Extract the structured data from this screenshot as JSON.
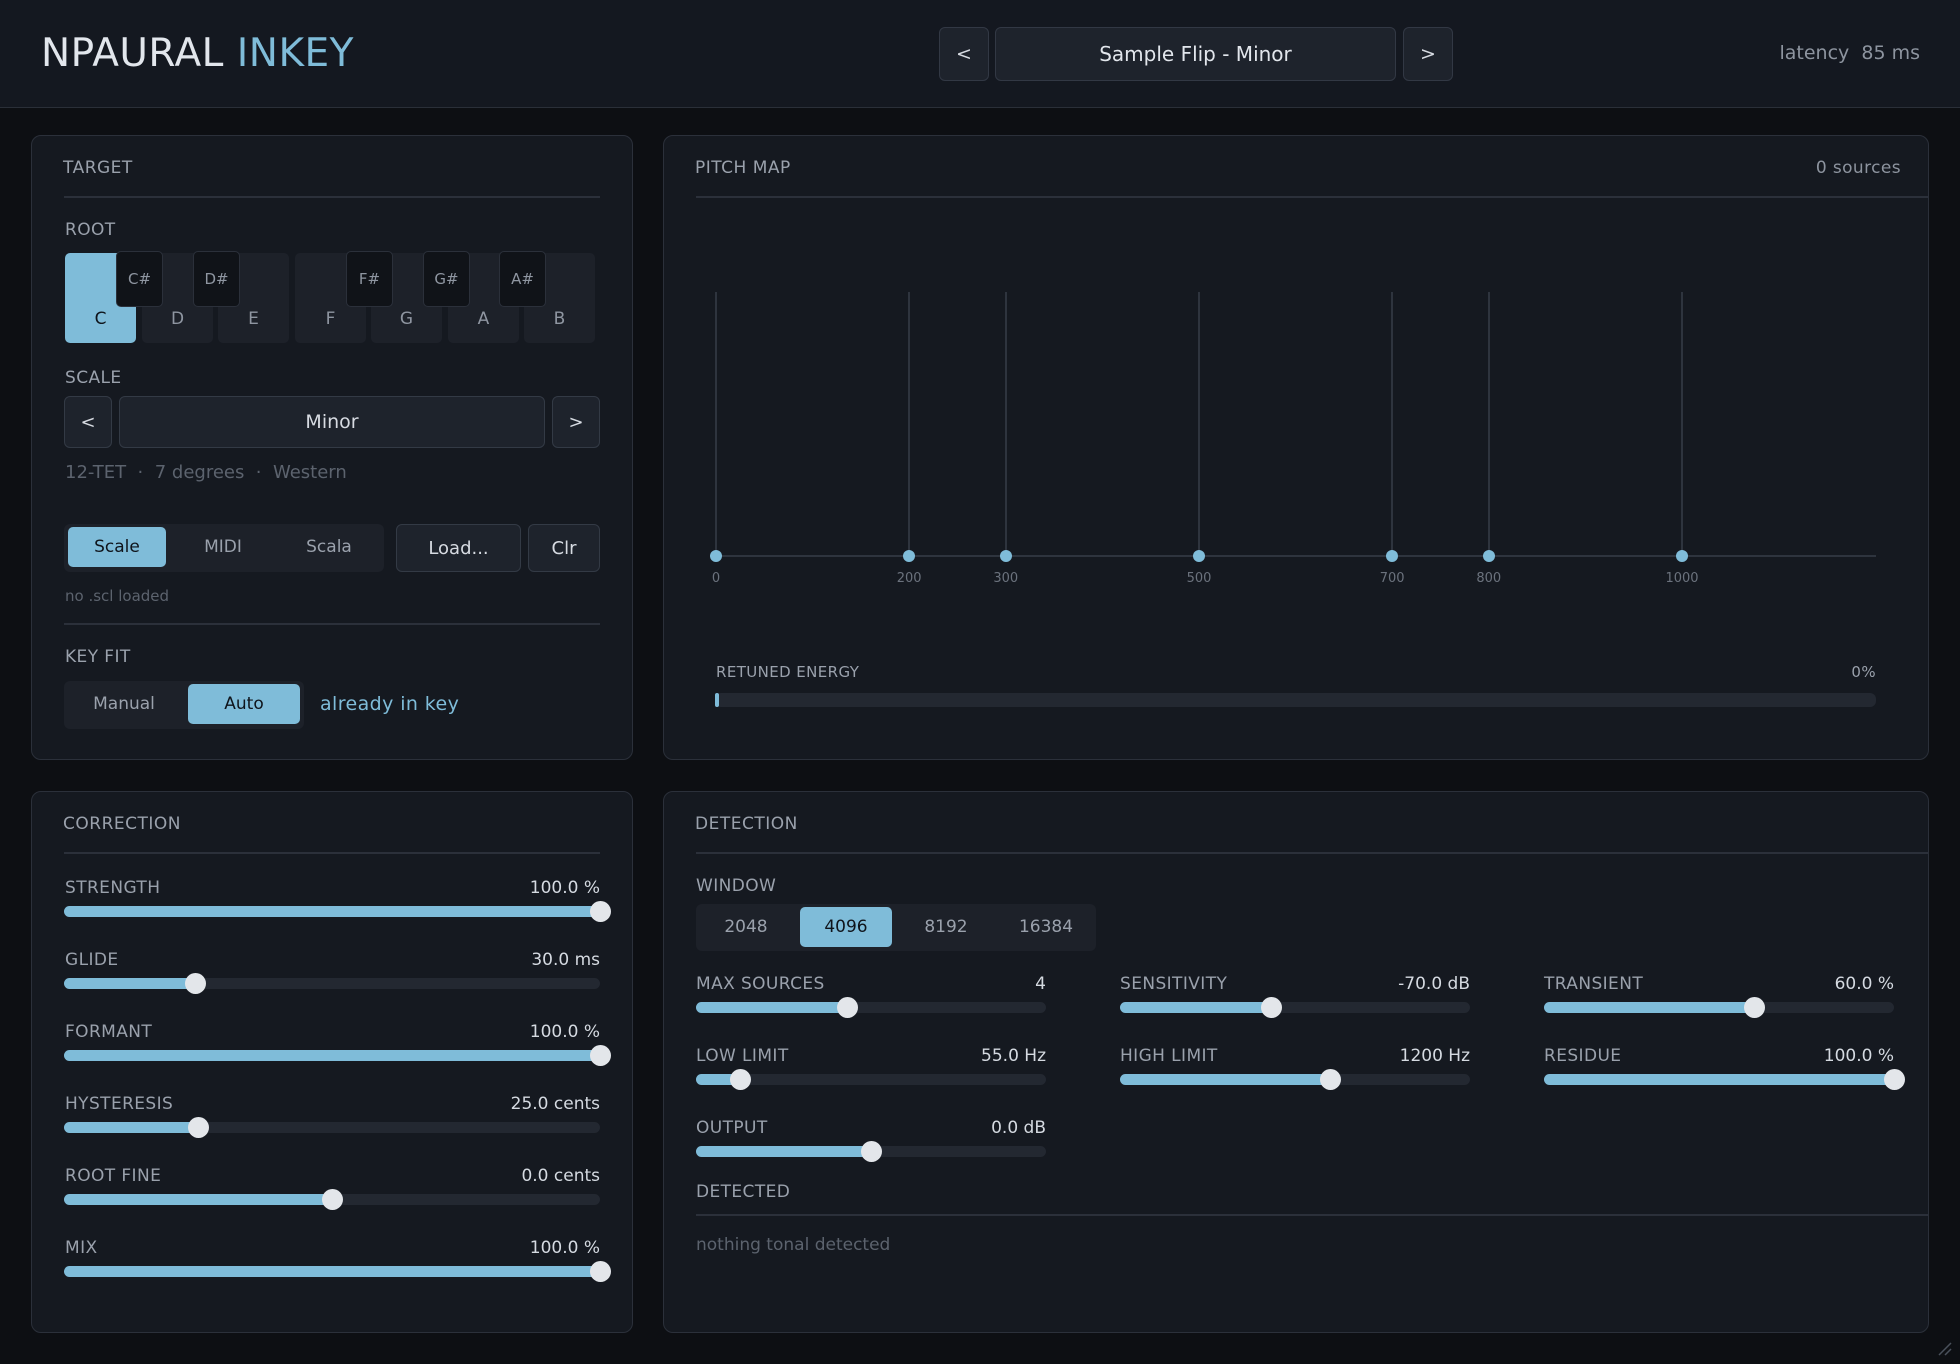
{
  "header": {
    "brand_part1": "NPAURAL",
    "brand_part2": "INKEY",
    "prev_label": "<",
    "next_label": ">",
    "preset_name": "Sample Flip - Minor",
    "latency_label": "latency",
    "latency_value": "85 ms"
  },
  "target": {
    "title": "TARGET",
    "root_label": "ROOT",
    "white_keys": [
      "C",
      "D",
      "E",
      "F",
      "G",
      "A",
      "B"
    ],
    "black_keys": [
      "C#",
      "D#",
      "F#",
      "G#",
      "A#"
    ],
    "selected_root": "C",
    "scale_label": "SCALE",
    "scale_prev": "<",
    "scale_name": "Minor",
    "scale_next": ">",
    "scale_info": "12-TET  ·  7 degrees  ·  Western",
    "source_tabs": [
      "Scale",
      "MIDI",
      "Scala"
    ],
    "source_selected": "Scale",
    "load_label": "Load...",
    "clear_label": "Clr",
    "scl_status": "no .scl loaded",
    "keyfit_label": "KEY FIT",
    "keyfit_options": [
      "Manual",
      "Auto"
    ],
    "keyfit_selected": "Auto",
    "keyfit_status": "already in key"
  },
  "pitch_map": {
    "title": "PITCH MAP",
    "sources": "0 sources",
    "ticks": [
      "0",
      "200",
      "300",
      "500",
      "700",
      "800",
      "1000"
    ],
    "tick_cents": [
      0,
      200,
      300,
      500,
      700,
      800,
      1000
    ],
    "energy_label": "RETUNED ENERGY",
    "energy_value": "0%",
    "energy_fraction": 0
  },
  "correction": {
    "title": "CORRECTION",
    "params": [
      {
        "label": "STRENGTH",
        "value": "100.0 %",
        "fraction": 1.0
      },
      {
        "label": "GLIDE",
        "value": "30.0 ms",
        "fraction": 0.245
      },
      {
        "label": "FORMANT",
        "value": "100.0 %",
        "fraction": 1.0
      },
      {
        "label": "HYSTERESIS",
        "value": "25.0 cents",
        "fraction": 0.25
      },
      {
        "label": "ROOT FINE",
        "value": "0.0 cents",
        "fraction": 0.5
      },
      {
        "label": "MIX",
        "value": "100.0 %",
        "fraction": 1.0
      }
    ]
  },
  "detection": {
    "title": "DETECTION",
    "window_label": "WINDOW",
    "window_options": [
      "2048",
      "4096",
      "8192",
      "16384"
    ],
    "window_selected": "4096",
    "params": [
      {
        "label": "MAX SOURCES",
        "value": "4",
        "fraction": 0.43
      },
      {
        "label": "SENSITIVITY",
        "value": "-70.0 dB",
        "fraction": 0.43
      },
      {
        "label": "TRANSIENT",
        "value": "60.0 %",
        "fraction": 0.6
      },
      {
        "label": "LOW LIMIT",
        "value": "55.0 Hz",
        "fraction": 0.125
      },
      {
        "label": "HIGH LIMIT",
        "value": "1200 Hz",
        "fraction": 0.6
      },
      {
        "label": "RESIDUE",
        "value": "100.0 %",
        "fraction": 1.0
      },
      {
        "label": "OUTPUT",
        "value": "0.0 dB",
        "fraction": 0.5
      }
    ],
    "detected_label": "DETECTED",
    "detected_status": "nothing tonal detected"
  },
  "colors": {
    "accent": "#7fbcd9",
    "background": "#0d0f13",
    "panel": "#151920"
  }
}
